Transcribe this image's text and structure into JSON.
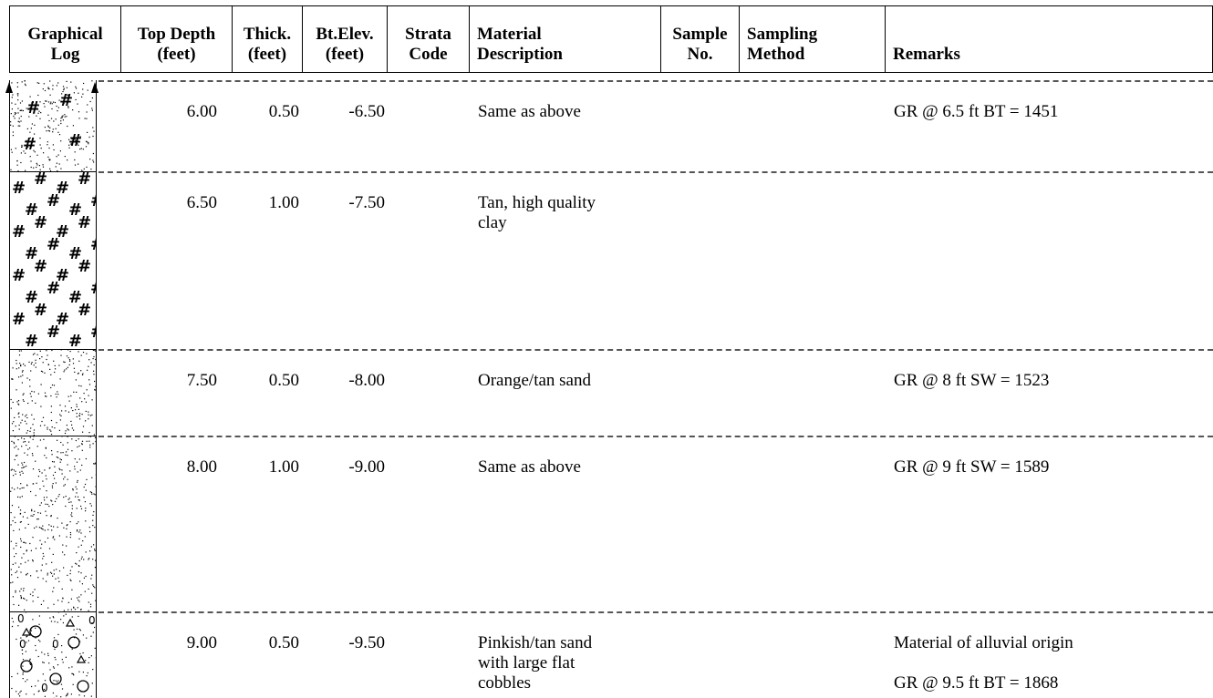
{
  "headers": [
    {
      "key": "graphical_log",
      "text": "Graphical\nLog"
    },
    {
      "key": "top_depth",
      "text": "Top Depth\n(feet)"
    },
    {
      "key": "thick",
      "text": "Thick.\n(feet)"
    },
    {
      "key": "bt_elev",
      "text": "Bt.Elev.\n(feet)"
    },
    {
      "key": "strata_code",
      "text": "Strata\nCode"
    },
    {
      "key": "material_description",
      "text": "Material\nDescription"
    },
    {
      "key": "sample_no",
      "text": "Sample\nNo."
    },
    {
      "key": "sampling_method",
      "text": "Sampling\nMethod"
    },
    {
      "key": "remarks",
      "text": "Remarks"
    }
  ],
  "rows": [
    {
      "top_depth": "6.00",
      "thick": "0.50",
      "bt_elev": "-6.50",
      "strata_code": "",
      "description": "Same as above",
      "sample_no": "",
      "sampling_method": "",
      "remarks": "GR @ 6.5 ft BT = 1451",
      "remarks2": "",
      "pattern": "sand-hash"
    },
    {
      "top_depth": "6.50",
      "thick": "1.00",
      "bt_elev": "-7.50",
      "strata_code": "",
      "description": "Tan, high quality\nclay",
      "sample_no": "",
      "sampling_method": "",
      "remarks": "",
      "remarks2": "",
      "pattern": "hash"
    },
    {
      "top_depth": "7.50",
      "thick": "0.50",
      "bt_elev": "-8.00",
      "strata_code": "",
      "description": "Orange/tan sand",
      "sample_no": "",
      "sampling_method": "",
      "remarks": "GR @ 8 ft SW = 1523",
      "remarks2": "",
      "pattern": "sand"
    },
    {
      "top_depth": "8.00",
      "thick": "1.00",
      "bt_elev": "-9.00",
      "strata_code": "",
      "description": "Same as above",
      "sample_no": "",
      "sampling_method": "",
      "remarks": "GR @ 9 ft SW = 1589",
      "remarks2": "",
      "pattern": "sand"
    },
    {
      "top_depth": "9.00",
      "thick": "0.50",
      "bt_elev": "-9.50",
      "strata_code": "",
      "description": "Pinkish/tan sand\nwith large flat\ncobbles",
      "sample_no": "",
      "sampling_method": "",
      "remarks": " Material of alluvial origin",
      "remarks2": "GR @ 9.5 ft BT = 1868",
      "pattern": "cobbles"
    }
  ]
}
